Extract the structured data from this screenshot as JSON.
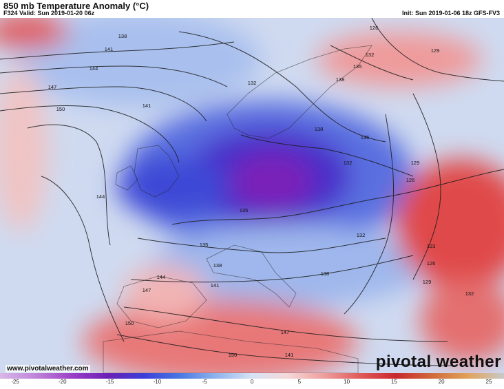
{
  "header": {
    "title": "850 mb Temperature Anomaly (°C)",
    "valid": "F324 Valid: Sun 2019-01-20 06z",
    "init": "Init: Sun 2019-01-06 18z GFS-FV3"
  },
  "footer": {
    "website": "www.pivotalweather.com",
    "brand": "pivotal weather"
  },
  "colorbar": {
    "ticks": [
      "-25",
      "-20",
      "-15",
      "-10",
      "-5",
      "0",
      "5",
      "10",
      "15",
      "20",
      "25"
    ],
    "stops": [
      "#d8b7e8",
      "#c084d8",
      "#9b3fc7",
      "#6a1fb5",
      "#3b3fd8",
      "#4a78e2",
      "#8fb3ec",
      "#d6e3f5",
      "#f5d8d8",
      "#ee9e9e",
      "#e05a5a",
      "#c8282e",
      "#d06a3a",
      "#e0a35a",
      "#c9c9c9"
    ]
  },
  "map": {
    "ocean_color": "#cfdaf0",
    "land_color": "#dfe6f4",
    "contour_labels": [
      "138",
      "141",
      "144",
      "147",
      "150",
      "126",
      "132",
      "129",
      "135",
      "138",
      "132",
      "129",
      "126",
      "135",
      "132",
      "135",
      "138",
      "141",
      "144",
      "147",
      "150",
      "141",
      "144",
      "147",
      "132",
      "123",
      "126",
      "129",
      "132",
      "135",
      "138",
      "138",
      "150",
      "141"
    ]
  }
}
